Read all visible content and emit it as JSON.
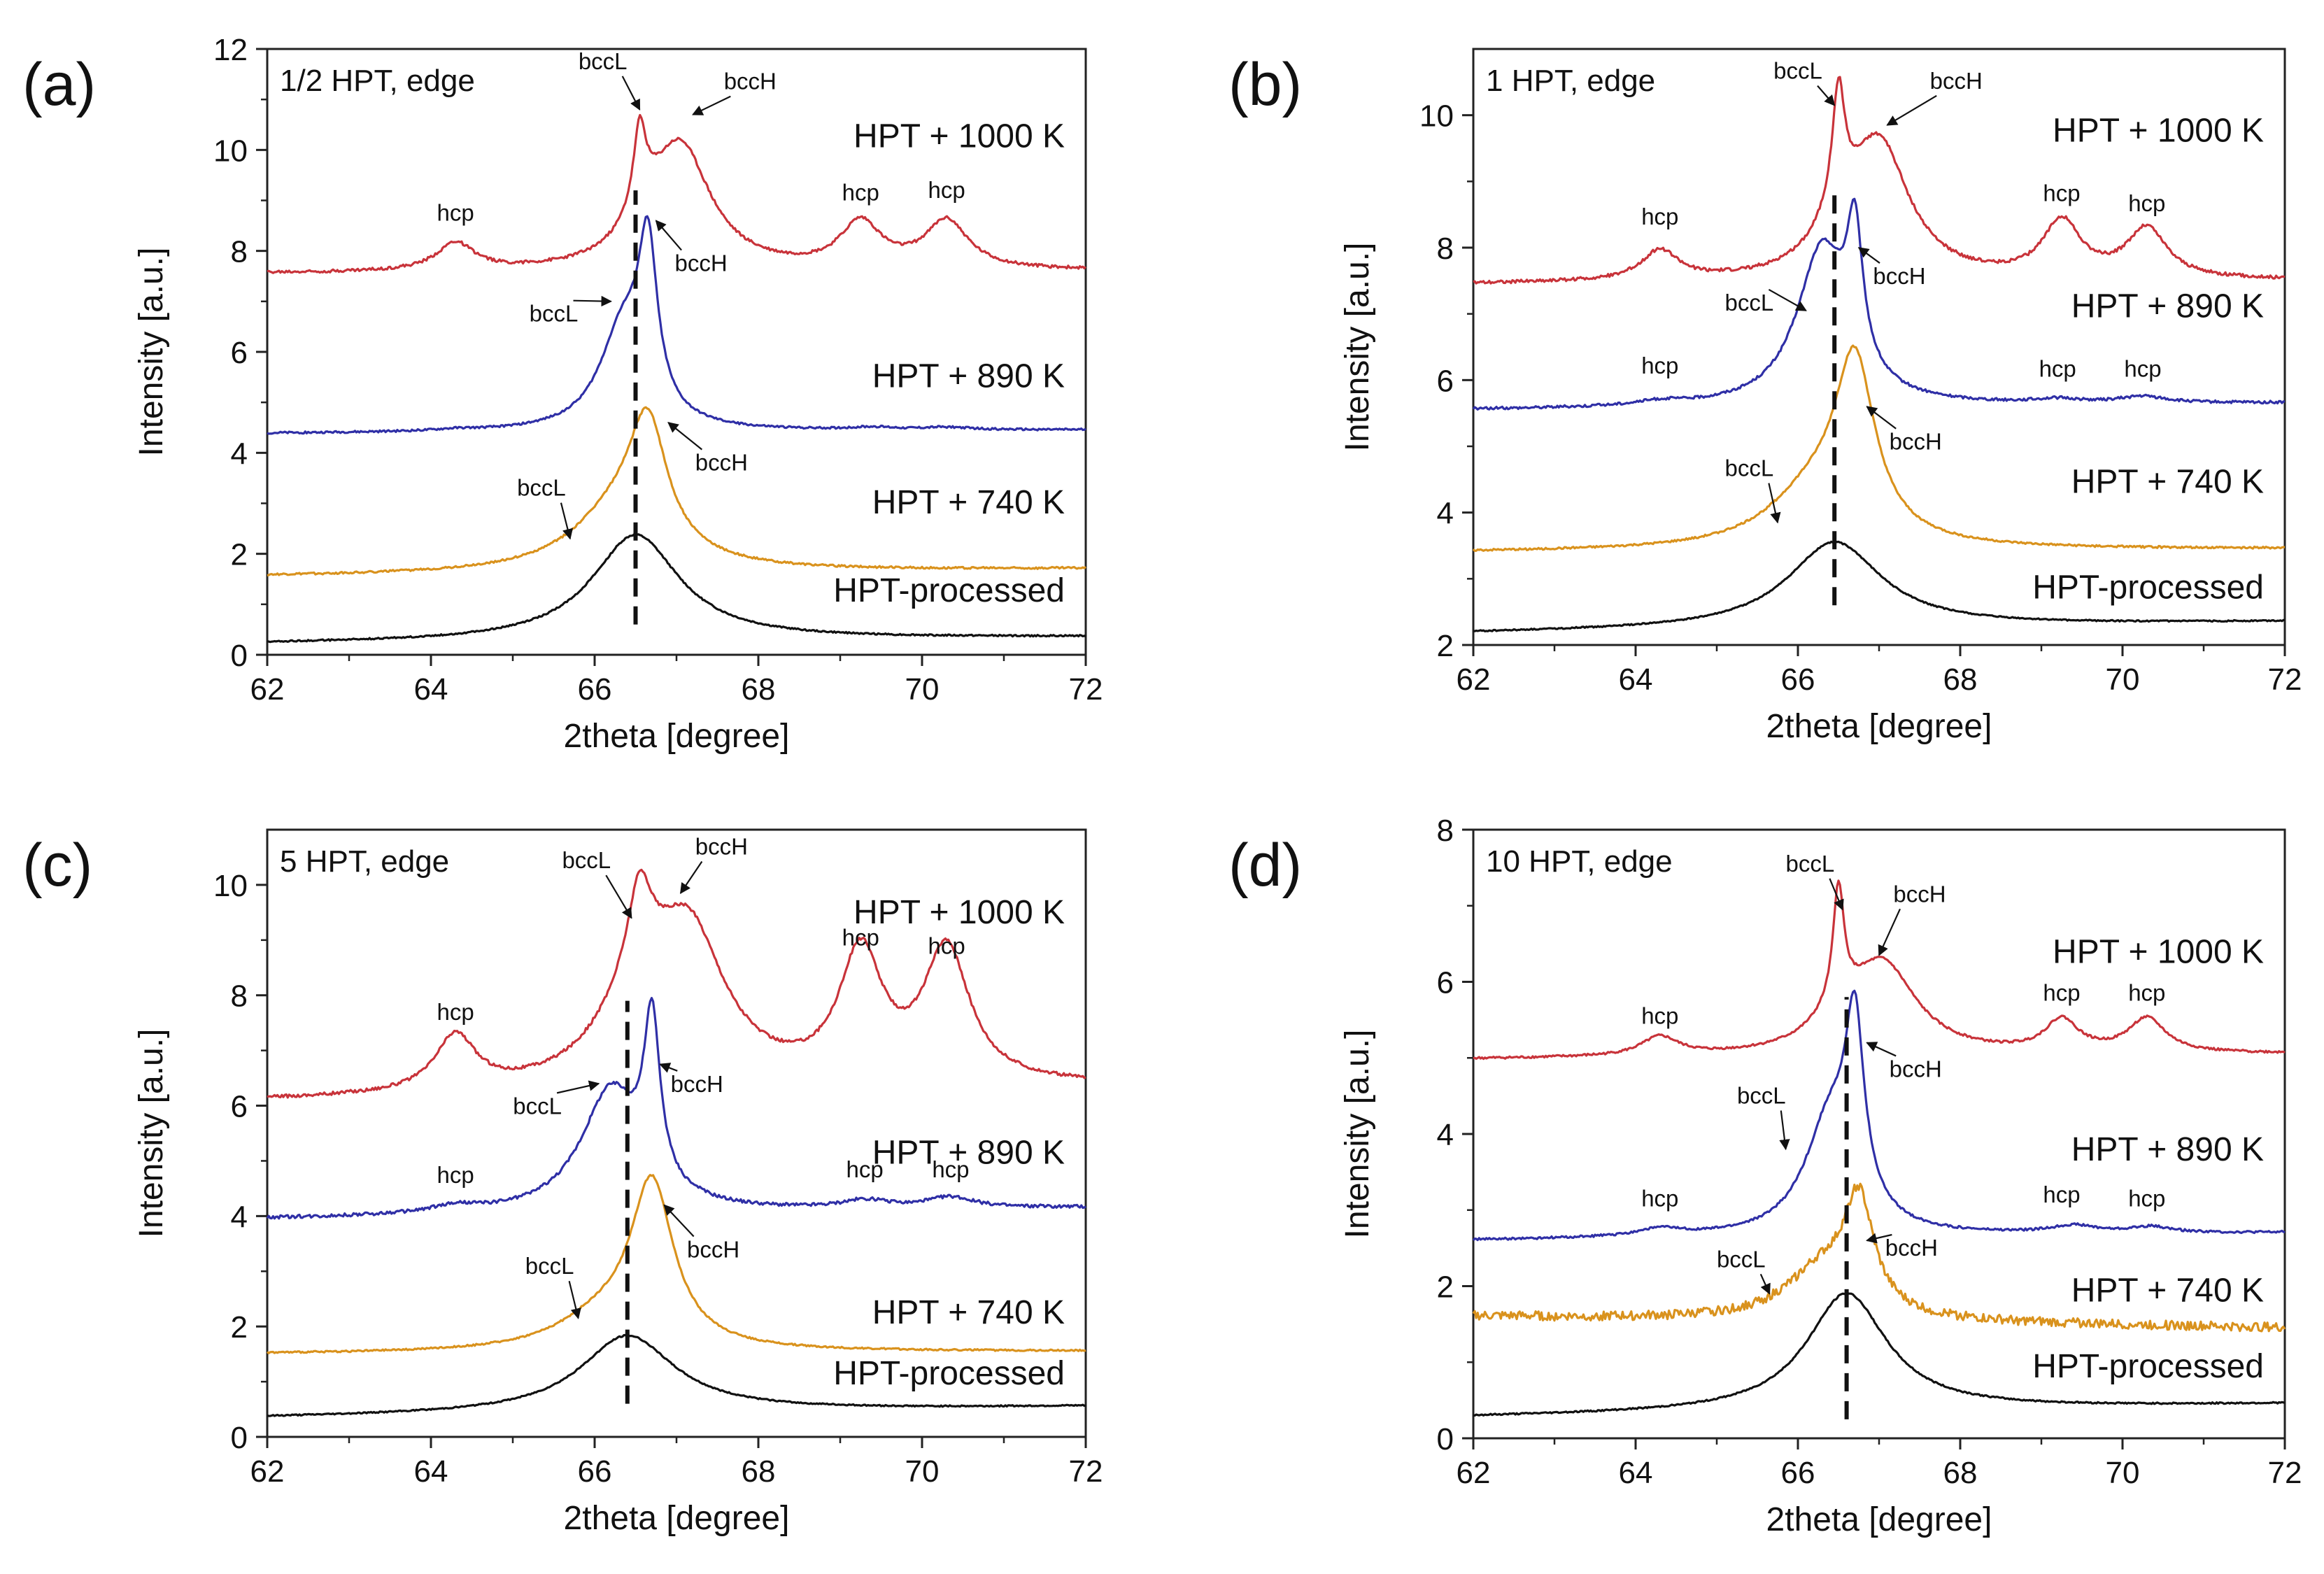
{
  "figure": {
    "colors": {
      "HPT + 1000 K": "#c8333a",
      "HPT + 890 K": "#2f2fa6",
      "HPT + 740 K": "#d9921d",
      "HPT-processed": "#111111"
    }
  },
  "chart_data": [
    {
      "panel": "(a)",
      "type": "line",
      "title": "1/2 HPT, edge",
      "xlabel": "2theta [degree]",
      "ylabel": "Intensity [a.u.]",
      "xlim": [
        62,
        72
      ],
      "ylim": [
        0,
        12
      ],
      "xticks": [
        62,
        64,
        66,
        68,
        70,
        72
      ],
      "yticks": [
        0,
        2,
        4,
        6,
        8,
        10,
        12
      ],
      "dashed_x": 66.5,
      "dashed_y": [
        0.6,
        9.2
      ],
      "series": [
        {
          "name": "HPT + 1000 K",
          "color": "#c8333a",
          "base": 7.55,
          "baseR": 7.6,
          "peaks": [
            [
              64.3,
              0.55,
              0.28
            ],
            [
              66.55,
              1.5,
              0.09
            ],
            [
              66.6,
              0.5,
              0.3
            ],
            [
              67.05,
              2.4,
              0.45
            ],
            [
              69.25,
              0.9,
              0.3
            ],
            [
              70.3,
              0.95,
              0.32
            ]
          ],
          "labelY": 10.05,
          "noise": 0.03
        },
        {
          "name": "HPT + 890 K",
          "color": "#2f2fa6",
          "base": 4.38,
          "baseR": 4.45,
          "peaks": [
            [
              66.35,
              2.0,
              0.35
            ],
            [
              66.65,
              3.1,
              0.14
            ],
            [
              64.3,
              0.03,
              0.3
            ],
            [
              69.4,
              0.05,
              0.35
            ],
            [
              70.3,
              0.05,
              0.35
            ]
          ],
          "labelY": 5.3,
          "noise": 0.02
        },
        {
          "name": "HPT + 740 K",
          "color": "#d9921d",
          "base": 1.55,
          "baseR": 1.7,
          "peaks": [
            [
              66.3,
              1.15,
              0.7
            ],
            [
              66.65,
              2.35,
              0.28
            ]
          ],
          "labelY": 2.8,
          "noise": 0.02
        },
        {
          "name": "HPT-processed",
          "color": "#111111",
          "base": 0.22,
          "baseR": 0.35,
          "peaks": [
            [
              66.5,
              2.1,
              0.65
            ]
          ],
          "labelY": 1.05,
          "noise": 0.015
        }
      ],
      "annotations": [
        {
          "text": "bccL",
          "x": 66.1,
          "y": 11.6,
          "ax": 66.55,
          "ay": 10.8
        },
        {
          "text": "bccH",
          "x": 67.9,
          "y": 11.2,
          "ax": 67.2,
          "ay": 10.7
        },
        {
          "text": "hcp",
          "x": 64.3,
          "y": 8.6,
          "ax": null,
          "ay": null
        },
        {
          "text": "hcp",
          "x": 69.25,
          "y": 9.0,
          "ax": null,
          "ay": null
        },
        {
          "text": "hcp",
          "x": 70.3,
          "y": 9.05,
          "ax": null,
          "ay": null
        },
        {
          "text": "bccH",
          "x": 67.3,
          "y": 7.6,
          "ax": 66.75,
          "ay": 8.6
        },
        {
          "text": "bccL",
          "x": 65.5,
          "y": 6.6,
          "ax": 66.2,
          "ay": 7.0
        },
        {
          "text": "bccH",
          "x": 67.55,
          "y": 3.65,
          "ax": 66.9,
          "ay": 4.6
        },
        {
          "text": "bccL",
          "x": 65.35,
          "y": 3.15,
          "ax": 65.7,
          "ay": 2.3
        }
      ]
    },
    {
      "panel": "(b)",
      "type": "line",
      "title": "1 HPT, edge",
      "xlabel": "2theta [degree]",
      "ylabel": "Intensity [a.u.]",
      "xlim": [
        62,
        72
      ],
      "ylim": [
        2,
        11
      ],
      "xticks": [
        62,
        64,
        66,
        68,
        70,
        72
      ],
      "yticks": [
        2,
        4,
        6,
        8,
        10
      ],
      "dashed_x": 66.45,
      "dashed_y": [
        2.6,
        8.8
      ],
      "series": [
        {
          "name": "HPT + 1000 K",
          "color": "#c8333a",
          "base": 7.45,
          "baseR": 7.5,
          "peaks": [
            [
              64.3,
              0.45,
              0.28
            ],
            [
              66.5,
              1.7,
              0.09
            ],
            [
              66.5,
              0.5,
              0.35
            ],
            [
              67.0,
              2.0,
              0.45
            ],
            [
              69.25,
              0.85,
              0.28
            ],
            [
              70.3,
              0.75,
              0.3
            ]
          ],
          "labelY": 9.6,
          "noise": 0.025
        },
        {
          "name": "HPT + 890 K",
          "color": "#2f2fa6",
          "base": 5.55,
          "baseR": 5.65,
          "peaks": [
            [
              66.3,
              2.35,
              0.38
            ],
            [
              66.7,
              2.0,
              0.12
            ],
            [
              64.3,
              0.06,
              0.35
            ],
            [
              69.2,
              0.06,
              0.35
            ],
            [
              70.25,
              0.1,
              0.35
            ]
          ],
          "labelY": 6.95,
          "noise": 0.02
        },
        {
          "name": "HPT + 740 K",
          "color": "#d9921d",
          "base": 3.4,
          "baseR": 3.45,
          "peaks": [
            [
              66.2,
              0.8,
              0.7
            ],
            [
              66.7,
              2.55,
              0.3
            ]
          ],
          "labelY": 4.3,
          "noise": 0.015
        },
        {
          "name": "HPT-processed",
          "color": "#111111",
          "base": 2.18,
          "baseR": 2.35,
          "peaks": [
            [
              66.45,
              1.3,
              0.7
            ]
          ],
          "labelY": 2.7,
          "noise": 0.01
        }
      ],
      "annotations": [
        {
          "text": "bccL",
          "x": 66.0,
          "y": 10.55,
          "ax": 66.45,
          "ay": 10.15
        },
        {
          "text": "bccH",
          "x": 67.95,
          "y": 10.4,
          "ax": 67.1,
          "ay": 9.85
        },
        {
          "text": "hcp",
          "x": 64.3,
          "y": 8.35,
          "ax": null,
          "ay": null
        },
        {
          "text": "hcp",
          "x": 69.25,
          "y": 8.7,
          "ax": null,
          "ay": null
        },
        {
          "text": "hcp",
          "x": 70.3,
          "y": 8.55,
          "ax": null,
          "ay": null
        },
        {
          "text": "bccH",
          "x": 67.25,
          "y": 7.45,
          "ax": 66.75,
          "ay": 8.0
        },
        {
          "text": "bccL",
          "x": 65.4,
          "y": 7.05,
          "ax": 66.1,
          "ay": 7.05
        },
        {
          "text": "hcp",
          "x": 64.3,
          "y": 6.1,
          "ax": null,
          "ay": null
        },
        {
          "text": "hcp",
          "x": 69.2,
          "y": 6.05,
          "ax": null,
          "ay": null
        },
        {
          "text": "hcp",
          "x": 70.25,
          "y": 6.05,
          "ax": null,
          "ay": null
        },
        {
          "text": "bccH",
          "x": 67.45,
          "y": 4.95,
          "ax": 66.85,
          "ay": 5.6
        },
        {
          "text": "bccL",
          "x": 65.4,
          "y": 4.55,
          "ax": 65.75,
          "ay": 3.85
        }
      ]
    },
    {
      "panel": "(c)",
      "type": "line",
      "title": "5 HPT, edge",
      "xlabel": "2theta [degree]",
      "ylabel": "Intensity [a.u.]",
      "xlim": [
        62,
        72
      ],
      "ylim": [
        0,
        11
      ],
      "xticks": [
        62,
        64,
        66,
        68,
        70,
        72
      ],
      "yticks": [
        0,
        2,
        4,
        6,
        8,
        10
      ],
      "dashed_x": 66.4,
      "dashed_y": [
        0.6,
        7.9
      ],
      "series": [
        {
          "name": "HPT + 1000 K",
          "color": "#c8333a",
          "base": 6.08,
          "baseR": 6.35,
          "peaks": [
            [
              64.3,
              1.0,
              0.3
            ],
            [
              66.55,
              1.6,
              0.18
            ],
            [
              66.5,
              1.2,
              0.6
            ],
            [
              67.15,
              2.6,
              0.55
            ],
            [
              69.25,
              2.3,
              0.32
            ],
            [
              70.3,
              2.4,
              0.34
            ]
          ],
          "labelY": 9.3,
          "noise": 0.03
        },
        {
          "name": "HPT + 890 K",
          "color": "#2f2fa6",
          "base": 3.95,
          "baseR": 4.15,
          "peaks": [
            [
              66.2,
              2.2,
              0.45
            ],
            [
              66.7,
              2.9,
              0.12
            ],
            [
              64.3,
              0.12,
              0.35
            ],
            [
              69.3,
              0.15,
              0.35
            ],
            [
              70.35,
              0.2,
              0.35
            ]
          ],
          "labelY": 4.95,
          "noise": 0.03
        },
        {
          "name": "HPT + 740 K",
          "color": "#d9921d",
          "base": 1.5,
          "baseR": 1.55,
          "peaks": [
            [
              66.1,
              0.55,
              0.7
            ],
            [
              66.7,
              2.9,
              0.32
            ]
          ],
          "labelY": 2.05,
          "noise": 0.015
        },
        {
          "name": "HPT-processed",
          "color": "#111111",
          "base": 0.35,
          "baseR": 0.55,
          "peaks": [
            [
              66.4,
              1.4,
              0.7
            ]
          ],
          "labelY": 0.95,
          "noise": 0.012
        }
      ],
      "annotations": [
        {
          "text": "bccL",
          "x": 65.9,
          "y": 10.3,
          "ax": 66.45,
          "ay": 9.4
        },
        {
          "text": "bccH",
          "x": 67.55,
          "y": 10.55,
          "ax": 67.05,
          "ay": 9.85
        },
        {
          "text": "hcp",
          "x": 64.3,
          "y": 7.55,
          "ax": null,
          "ay": null
        },
        {
          "text": "hcp",
          "x": 69.25,
          "y": 8.9,
          "ax": null,
          "ay": null
        },
        {
          "text": "hcp",
          "x": 70.3,
          "y": 8.75,
          "ax": null,
          "ay": null
        },
        {
          "text": "bccH",
          "x": 67.25,
          "y": 6.25,
          "ax": 66.8,
          "ay": 6.75
        },
        {
          "text": "bccL",
          "x": 65.3,
          "y": 5.85,
          "ax": 66.05,
          "ay": 6.4
        },
        {
          "text": "hcp",
          "x": 64.3,
          "y": 4.6,
          "ax": null,
          "ay": null
        },
        {
          "text": "hcp",
          "x": 69.3,
          "y": 4.7,
          "ax": null,
          "ay": null
        },
        {
          "text": "hcp",
          "x": 70.35,
          "y": 4.7,
          "ax": null,
          "ay": null
        },
        {
          "text": "bccH",
          "x": 67.45,
          "y": 3.25,
          "ax": 66.85,
          "ay": 4.2
        },
        {
          "text": "bccL",
          "x": 65.45,
          "y": 2.95,
          "ax": 65.8,
          "ay": 2.15
        }
      ]
    },
    {
      "panel": "(d)",
      "type": "line",
      "title": "10 HPT, edge",
      "xlabel": "2theta [degree]",
      "ylabel": "Intensity [a.u.]",
      "xlim": [
        62,
        72
      ],
      "ylim": [
        0,
        8
      ],
      "xticks": [
        62,
        64,
        66,
        68,
        70,
        72
      ],
      "yticks": [
        0,
        2,
        4,
        6,
        8
      ],
      "dashed_x": 66.6,
      "dashed_y": [
        0.25,
        5.8
      ],
      "series": [
        {
          "name": "HPT + 1000 K",
          "color": "#c8333a",
          "base": 4.98,
          "baseR": 5.05,
          "peaks": [
            [
              64.3,
              0.25,
              0.28
            ],
            [
              66.5,
              1.5,
              0.08
            ],
            [
              66.5,
              0.3,
              0.4
            ],
            [
              67.05,
              1.15,
              0.5
            ],
            [
              69.25,
              0.42,
              0.25
            ],
            [
              70.3,
              0.45,
              0.28
            ]
          ],
          "labelY": 6.25,
          "noise": 0.015
        },
        {
          "name": "HPT + 890 K",
          "color": "#2f2fa6",
          "base": 2.6,
          "baseR": 2.7,
          "peaks": [
            [
              66.4,
              1.5,
              0.38
            ],
            [
              66.7,
              2.3,
              0.14
            ],
            [
              64.3,
              0.1,
              0.35
            ],
            [
              69.4,
              0.1,
              0.35
            ],
            [
              70.35,
              0.08,
              0.3
            ]
          ],
          "labelY": 3.65,
          "noise": 0.015
        },
        {
          "name": "HPT + 740 K",
          "color": "#d9921d",
          "base": 1.6,
          "baseR": 1.45,
          "peaks": [
            [
              66.3,
              0.65,
              0.55
            ],
            [
              66.75,
              1.4,
              0.22
            ]
          ],
          "labelY": 1.8,
          "noise": 0.06
        },
        {
          "name": "HPT-processed",
          "color": "#111111",
          "base": 0.28,
          "baseR": 0.45,
          "peaks": [
            [
              66.6,
              1.55,
              0.6
            ]
          ],
          "labelY": 0.8,
          "noise": 0.01
        }
      ],
      "annotations": [
        {
          "text": "bccL",
          "x": 66.15,
          "y": 7.45,
          "ax": 66.55,
          "ay": 6.95
        },
        {
          "text": "bccH",
          "x": 67.5,
          "y": 7.05,
          "ax": 67.0,
          "ay": 6.35
        },
        {
          "text": "hcp",
          "x": 64.3,
          "y": 5.45,
          "ax": null,
          "ay": null
        },
        {
          "text": "hcp",
          "x": 69.25,
          "y": 5.75,
          "ax": null,
          "ay": null
        },
        {
          "text": "hcp",
          "x": 70.3,
          "y": 5.75,
          "ax": null,
          "ay": null
        },
        {
          "text": "bccH",
          "x": 67.45,
          "y": 4.75,
          "ax": 66.85,
          "ay": 5.2
        },
        {
          "text": "bccL",
          "x": 65.55,
          "y": 4.4,
          "ax": 65.85,
          "ay": 3.8
        },
        {
          "text": "hcp",
          "x": 64.3,
          "y": 3.05,
          "ax": null,
          "ay": null
        },
        {
          "text": "hcp",
          "x": 69.25,
          "y": 3.1,
          "ax": null,
          "ay": null
        },
        {
          "text": "hcp",
          "x": 70.3,
          "y": 3.05,
          "ax": null,
          "ay": null
        },
        {
          "text": "bccH",
          "x": 67.4,
          "y": 2.4,
          "ax": 66.85,
          "ay": 2.6
        },
        {
          "text": "bccL",
          "x": 65.3,
          "y": 2.25,
          "ax": 65.65,
          "ay": 1.9
        }
      ]
    }
  ]
}
